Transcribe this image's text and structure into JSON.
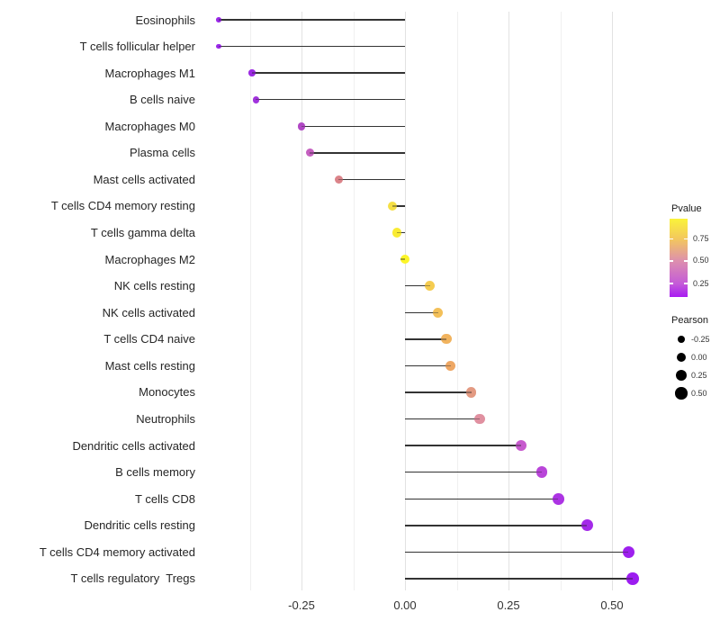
{
  "chart_data": {
    "type": "scatter",
    "subtype": "lollipop",
    "title": "",
    "xlabel": "",
    "ylabel": "",
    "x_tick_values": [
      -0.25,
      0,
      0.25,
      0.5
    ],
    "x_tick_labels": [
      "-0.25",
      "0.00",
      "0.25",
      "0.50"
    ],
    "x_range": [
      -0.46,
      0.61
    ],
    "grid": "vertical-only",
    "points": [
      {
        "label": "Eosinophils",
        "pearson": -0.45,
        "color": "#9a28e8"
      },
      {
        "label": "T cells follicular helper",
        "pearson": -0.45,
        "color": "#9a28e8"
      },
      {
        "label": "Macrophages M1",
        "pearson": -0.37,
        "color": "#9c2ae3"
      },
      {
        "label": "B cells naive",
        "pearson": -0.36,
        "color": "#a133dd"
      },
      {
        "label": "Macrophages M0",
        "pearson": -0.25,
        "color": "#b148c5"
      },
      {
        "label": "Plasma cells",
        "pearson": -0.23,
        "color": "#c55fc0"
      },
      {
        "label": "Mast cells activated",
        "pearson": -0.16,
        "color": "#db8389"
      },
      {
        "label": "T cells CD4 memory resting",
        "pearson": -0.03,
        "color": "#f5df44"
      },
      {
        "label": "T cells gamma delta",
        "pearson": -0.02,
        "color": "#f9eb33"
      },
      {
        "label": "Macrophages M2",
        "pearson": 0.0,
        "color": "#fcf527"
      },
      {
        "label": "NK cells resting",
        "pearson": 0.06,
        "color": "#f5cc50"
      },
      {
        "label": "NK cells activated",
        "pearson": 0.08,
        "color": "#f3c059"
      },
      {
        "label": "T cells CD4 naive",
        "pearson": 0.1,
        "color": "#f1b35e"
      },
      {
        "label": "Mast cells resting",
        "pearson": 0.11,
        "color": "#eea764"
      },
      {
        "label": "Monocytes",
        "pearson": 0.16,
        "color": "#e39a82"
      },
      {
        "label": "Neutrophils",
        "pearson": 0.18,
        "color": "#e090a0"
      },
      {
        "label": "Dendritic cells activated",
        "pearson": 0.28,
        "color": "#c75bce"
      },
      {
        "label": "B cells memory",
        "pearson": 0.33,
        "color": "#b945d9"
      },
      {
        "label": "T cells CD8",
        "pearson": 0.37,
        "color": "#ac33e3"
      },
      {
        "label": "Dendritic cells resting",
        "pearson": 0.44,
        "color": "#a42ae9"
      },
      {
        "label": "T cells CD4 memory activated",
        "pearson": 0.54,
        "color": "#9e20ee"
      },
      {
        "label": "T cells regulatory  Tregs",
        "pearson": 0.55,
        "color": "#9c1df0"
      }
    ],
    "legend": {
      "pvalue": {
        "title": "Pvalue",
        "tick_labels": [
          "0.75",
          "0.50",
          "0.25"
        ],
        "gradient_top_to_bottom": [
          "#faf33a",
          "#f3c75e",
          "#dd8fae",
          "#c45bd8",
          "#a81bf2"
        ]
      },
      "pearson": {
        "title": "Pearson",
        "items": [
          {
            "label": "-0.25",
            "value": -0.25
          },
          {
            "label": "0.00",
            "value": 0
          },
          {
            "label": "0.25",
            "value": 0.25
          },
          {
            "label": "0.50",
            "value": 0.5
          }
        ]
      }
    }
  },
  "colors": {
    "background": "#ffffff",
    "stem": "#333333",
    "grid_major": "#e2e2e2",
    "grid_minor": "#f0f0f0",
    "axis_text": "#262626",
    "tick_text": "#333333",
    "legend_dot": "#000000"
  }
}
